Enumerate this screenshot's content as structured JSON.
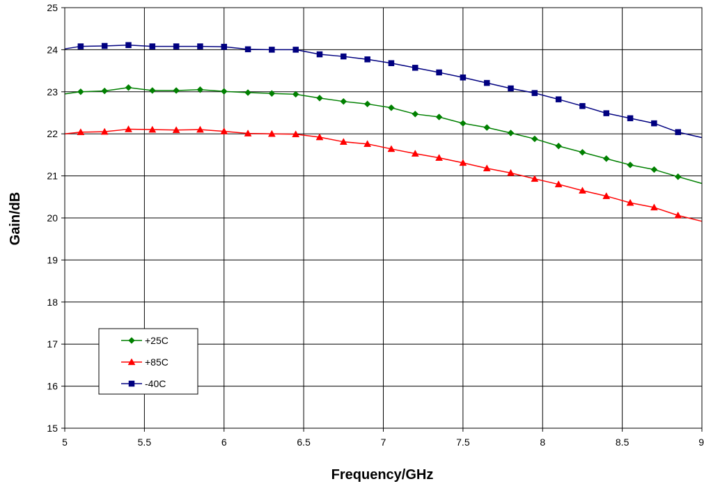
{
  "chart_data": {
    "type": "line",
    "title": "",
    "xlabel": "Frequency/GHz",
    "ylabel": "Gain/dB",
    "xlim": [
      5,
      9
    ],
    "ylim": [
      15,
      25
    ],
    "x_ticks": [
      "5",
      "5.5",
      "6",
      "6.5",
      "7",
      "7.5",
      "8",
      "8.5",
      "9"
    ],
    "y_ticks": [
      "15",
      "16",
      "17",
      "18",
      "19",
      "20",
      "21",
      "22",
      "23",
      "24",
      "25"
    ],
    "grid": true,
    "legend_position": "bottom-left",
    "series": [
      {
        "name": "+25C",
        "color": "#008000",
        "marker": "diamond",
        "x": [
          5.0,
          5.1,
          5.25,
          5.4,
          5.55,
          5.7,
          5.85,
          6.0,
          6.15,
          6.3,
          6.45,
          6.6,
          6.75,
          6.9,
          7.05,
          7.2,
          7.35,
          7.5,
          7.65,
          7.8,
          7.95,
          8.1,
          8.25,
          8.4,
          8.55,
          8.7,
          8.85,
          9.0
        ],
        "y": [
          22.95,
          23.0,
          23.02,
          23.1,
          23.03,
          23.03,
          23.05,
          23.01,
          22.98,
          22.96,
          22.94,
          22.85,
          22.77,
          22.71,
          22.62,
          22.47,
          22.4,
          22.25,
          22.15,
          22.02,
          21.88,
          21.71,
          21.56,
          21.41,
          21.26,
          21.15,
          20.98,
          20.82
        ],
        "marked": [
          false,
          true,
          true,
          true,
          true,
          true,
          true,
          true,
          true,
          true,
          true,
          true,
          true,
          true,
          true,
          true,
          true,
          true,
          true,
          true,
          true,
          true,
          true,
          true,
          true,
          true,
          true,
          false
        ]
      },
      {
        "name": "+85C",
        "color": "#ff0000",
        "marker": "triangle",
        "x": [
          5.0,
          5.1,
          5.25,
          5.4,
          5.55,
          5.7,
          5.85,
          6.0,
          6.15,
          6.3,
          6.45,
          6.6,
          6.75,
          6.9,
          7.05,
          7.2,
          7.35,
          7.5,
          7.65,
          7.8,
          7.95,
          8.1,
          8.25,
          8.4,
          8.55,
          8.7,
          8.85,
          9.0
        ],
        "y": [
          22.0,
          22.04,
          22.05,
          22.11,
          22.1,
          22.09,
          22.1,
          22.06,
          22.01,
          22.0,
          21.99,
          21.92,
          21.81,
          21.76,
          21.64,
          21.53,
          21.43,
          21.31,
          21.18,
          21.07,
          20.93,
          20.8,
          20.65,
          20.52,
          20.36,
          20.25,
          20.06,
          19.92
        ],
        "marked": [
          false,
          true,
          true,
          true,
          true,
          true,
          true,
          true,
          true,
          true,
          true,
          true,
          true,
          true,
          true,
          true,
          true,
          true,
          true,
          true,
          true,
          true,
          true,
          true,
          true,
          true,
          true,
          false
        ]
      },
      {
        "name": "-40C",
        "color": "#000080",
        "marker": "square",
        "x": [
          5.0,
          5.1,
          5.25,
          5.4,
          5.55,
          5.7,
          5.85,
          6.0,
          6.15,
          6.3,
          6.45,
          6.6,
          6.75,
          6.9,
          7.05,
          7.2,
          7.35,
          7.5,
          7.65,
          7.8,
          7.95,
          8.1,
          8.25,
          8.4,
          8.55,
          8.7,
          8.85,
          9.0
        ],
        "y": [
          24.02,
          24.08,
          24.09,
          24.11,
          24.08,
          24.08,
          24.08,
          24.07,
          24.01,
          24.0,
          24.0,
          23.89,
          23.84,
          23.77,
          23.68,
          23.57,
          23.46,
          23.34,
          23.21,
          23.08,
          22.97,
          22.82,
          22.66,
          22.49,
          22.37,
          22.25,
          22.04,
          21.91
        ],
        "marked": [
          false,
          true,
          true,
          true,
          true,
          true,
          true,
          true,
          true,
          true,
          true,
          true,
          true,
          true,
          true,
          true,
          true,
          true,
          true,
          true,
          true,
          true,
          true,
          true,
          true,
          true,
          true,
          false
        ]
      }
    ]
  }
}
